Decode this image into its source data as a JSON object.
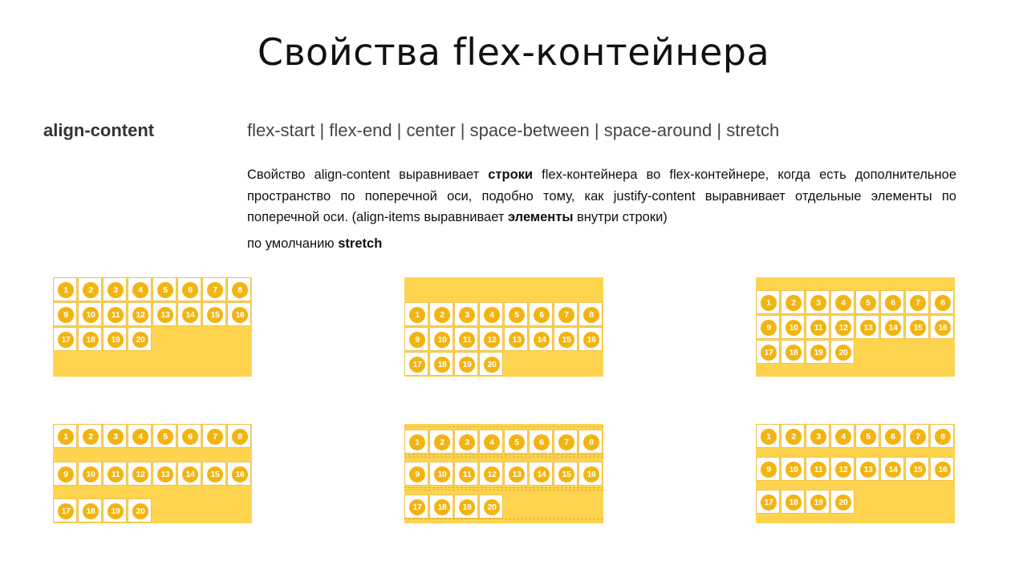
{
  "slide": {
    "title": "Свойства flex-контейнера",
    "property": "align-content",
    "values": "flex-start | flex-end | center | space-between | space-around | stretch",
    "description": {
      "p1": "Свойство align-content выравнивает ",
      "b1": "строки",
      "p2": " flex-контейнера во flex-контейнере, когда есть дополнительное пространство по поперечной оси, подобно тому, как justify-content выравнивает отдельные элементы по поперечной оси. (align-items выравнивает ",
      "b2": "элементы",
      "p3": " внутри строки)"
    },
    "default_prefix": "по умолчанию ",
    "default_value": "stretch"
  },
  "items": [
    "1",
    "2",
    "3",
    "4",
    "5",
    "6",
    "7",
    "8",
    "9",
    "10",
    "11",
    "12",
    "13",
    "14",
    "15",
    "16",
    "17",
    "18",
    "19",
    "20"
  ],
  "colors": {
    "container": "#fed44f",
    "item_circle": "#f2b411",
    "item_bg": "#ffffff"
  }
}
